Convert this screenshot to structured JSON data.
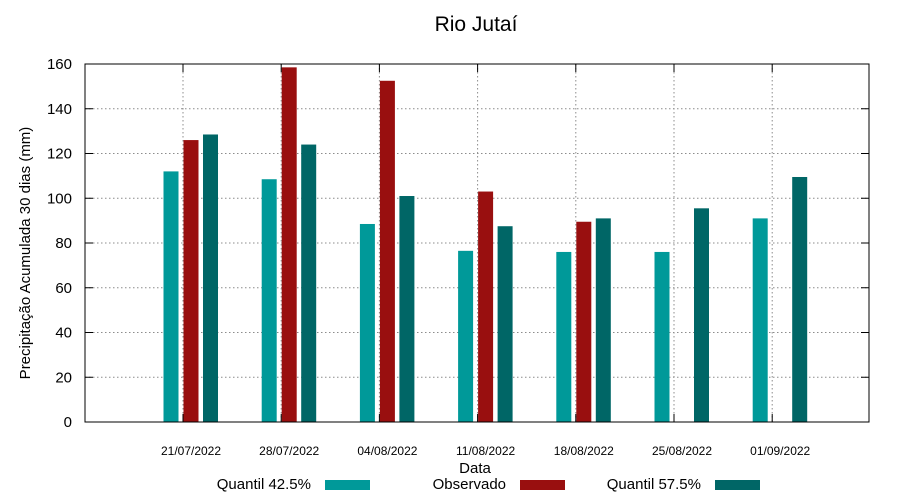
{
  "chart_data": {
    "type": "bar",
    "title": "Rio Jutaí",
    "xlabel": "Data",
    "ylabel": "Precipitação Acumulada 30 dias (mm)",
    "ylim": [
      0,
      160
    ],
    "yticks": [
      0,
      20,
      40,
      60,
      80,
      100,
      120,
      140,
      160
    ],
    "grid": true,
    "legend_position": "bottom",
    "categories": [
      "21/07/2022",
      "28/07/2022",
      "04/08/2022",
      "11/08/2022",
      "18/08/2022",
      "25/08/2022",
      "01/09/2022"
    ],
    "series": [
      {
        "name": "Quantil 42.5%",
        "color": "#009999",
        "values": [
          112,
          108.5,
          88.5,
          76.5,
          76,
          76,
          91
        ]
      },
      {
        "name": "Observado",
        "color": "#990f0f",
        "values": [
          126,
          158.5,
          152.5,
          103,
          89.5,
          null,
          null
        ]
      },
      {
        "name": "Quantil 57.5%",
        "color": "#006666",
        "values": [
          128.5,
          124,
          101,
          87.5,
          91,
          95.5,
          109.5
        ]
      }
    ]
  }
}
